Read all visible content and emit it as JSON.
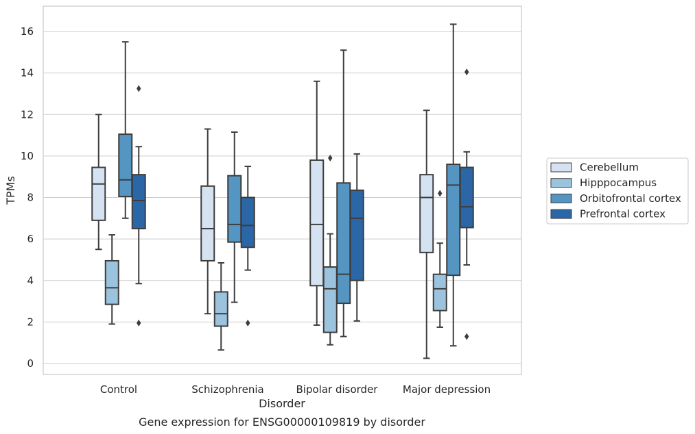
{
  "chart_data": {
    "type": "box",
    "xlabel": "Disorder",
    "ylabel": "TPMs",
    "caption": "Gene expression for ENSG00000109819 by disorder",
    "ylim": [
      -0.5,
      17.2
    ],
    "yticks": [
      0,
      2,
      4,
      6,
      8,
      10,
      12,
      14,
      16
    ],
    "grid": "horizontal",
    "legend_position": "right",
    "categories": [
      "Control",
      "Schizophrenia",
      "Bipolar disorder",
      "Major depression"
    ],
    "series": [
      {
        "name": "Cerebellum",
        "color": "#d4e2f1",
        "boxes": [
          {
            "whisker_low": 5.5,
            "q1": 6.9,
            "median": 8.65,
            "q3": 9.45,
            "whisker_high": 12.0,
            "outliers": []
          },
          {
            "whisker_low": 2.4,
            "q1": 4.95,
            "median": 6.5,
            "q3": 8.55,
            "whisker_high": 11.3,
            "outliers": []
          },
          {
            "whisker_low": 1.85,
            "q1": 3.75,
            "median": 6.7,
            "q3": 9.8,
            "whisker_high": 13.6,
            "outliers": []
          },
          {
            "whisker_low": 0.25,
            "q1": 5.35,
            "median": 8.0,
            "q3": 9.1,
            "whisker_high": 12.2,
            "outliers": []
          }
        ]
      },
      {
        "name": "Hipppocampus",
        "color": "#9bc3dd",
        "boxes": [
          {
            "whisker_low": 1.9,
            "q1": 2.85,
            "median": 3.65,
            "q3": 4.95,
            "whisker_high": 6.2,
            "outliers": []
          },
          {
            "whisker_low": 0.65,
            "q1": 1.8,
            "median": 2.4,
            "q3": 3.45,
            "whisker_high": 4.85,
            "outliers": []
          },
          {
            "whisker_low": 0.9,
            "q1": 1.5,
            "median": 3.6,
            "q3": 4.65,
            "whisker_high": 6.25,
            "outliers": [
              9.9
            ]
          },
          {
            "whisker_low": 1.75,
            "q1": 2.55,
            "median": 3.6,
            "q3": 4.3,
            "whisker_high": 5.8,
            "outliers": [
              8.2
            ]
          }
        ]
      },
      {
        "name": "Orbitofrontal cortex",
        "color": "#5595c2",
        "boxes": [
          {
            "whisker_low": 7.0,
            "q1": 8.05,
            "median": 8.85,
            "q3": 11.05,
            "whisker_high": 15.5,
            "outliers": []
          },
          {
            "whisker_low": 2.95,
            "q1": 5.85,
            "median": 6.7,
            "q3": 9.05,
            "whisker_high": 11.15,
            "outliers": []
          },
          {
            "whisker_low": 1.3,
            "q1": 2.9,
            "median": 4.3,
            "q3": 8.7,
            "whisker_high": 15.1,
            "outliers": []
          },
          {
            "whisker_low": 0.85,
            "q1": 4.25,
            "median": 8.6,
            "q3": 9.6,
            "whisker_high": 16.35,
            "outliers": []
          }
        ]
      },
      {
        "name": "Prefrontal cortex",
        "color": "#2b67a7",
        "boxes": [
          {
            "whisker_low": 3.85,
            "q1": 6.5,
            "median": 7.85,
            "q3": 9.1,
            "whisker_high": 10.45,
            "outliers": [
              13.25,
              1.95
            ]
          },
          {
            "whisker_low": 4.5,
            "q1": 5.6,
            "median": 6.65,
            "q3": 8.0,
            "whisker_high": 9.5,
            "outliers": [
              1.95
            ]
          },
          {
            "whisker_low": 2.05,
            "q1": 4.0,
            "median": 7.0,
            "q3": 8.35,
            "whisker_high": 10.1,
            "outliers": []
          },
          {
            "whisker_low": 4.75,
            "q1": 6.55,
            "median": 7.55,
            "q3": 9.45,
            "whisker_high": 10.2,
            "outliers": [
              14.05,
              1.3
            ]
          }
        ]
      }
    ]
  },
  "colors": {
    "axis_frame": "#cccccc",
    "grid": "#cccccc",
    "box_edge": "#3d3d3d",
    "text": "#262626"
  }
}
